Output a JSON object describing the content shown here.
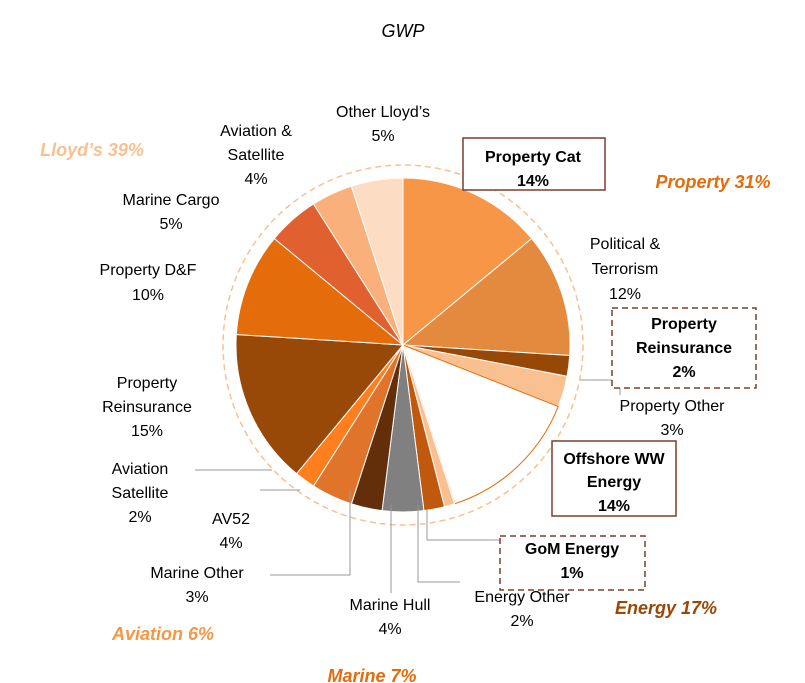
{
  "chart_data": {
    "type": "pie",
    "title": "GWP",
    "categories": [
      [
        "Property Cat"
      ],
      [
        "Political &",
        "Terrorism"
      ],
      [
        "Property",
        "Reinsurance"
      ],
      [
        "Property Other"
      ],
      [
        "Offshore WW",
        "Energy"
      ],
      [
        "GoM Energy"
      ],
      [
        "Energy Other"
      ],
      [
        "Marine Hull"
      ],
      [
        "Marine Other"
      ],
      [
        "AV52"
      ],
      [
        "Aviation",
        "Satellite"
      ],
      [
        "Property",
        "Reinsurance"
      ],
      [
        "Property D&F"
      ],
      [
        "Marine Cargo"
      ],
      [
        "Aviation &",
        "Satellite"
      ],
      [
        "Other Lloyd’s"
      ]
    ],
    "values": [
      14,
      12,
      2,
      3,
      14,
      1,
      2,
      4,
      3,
      4,
      2,
      15,
      10,
      5,
      4,
      5
    ],
    "value_labels": [
      "14%",
      "12%",
      "2%",
      "3%",
      "14%",
      "1%",
      "2%",
      "4%",
      "3%",
      "4%",
      "2%",
      "15%",
      "10%",
      "5%",
      "4%",
      "5%"
    ],
    "colors": [
      "#F79646",
      "#E38A3F",
      "#974706",
      "#FAC090",
      "#FFFFFF",
      "#FAC090",
      "#C0580D",
      "#808080",
      "#632E0A",
      "#E0742A",
      "#FF7F1F",
      "#984807",
      "#E46C0A",
      "#E06030",
      "#FAB07A",
      "#FDDCC4"
    ],
    "label_box": [
      "solid",
      null,
      "dashed",
      null,
      "solid",
      "dashed",
      null,
      null,
      null,
      null,
      null,
      null,
      null,
      null,
      null,
      null
    ],
    "groups": [
      {
        "label": "Lloyd’s 39%",
        "color": "#FAC090"
      },
      {
        "label": "Property 31%",
        "color": "#E46C0A"
      },
      {
        "label": "Energy 17%",
        "color": "#984807"
      },
      {
        "label": "Aviation 6%",
        "color": "#F79646"
      },
      {
        "label": "Marine 7%",
        "color": "#E46C0A"
      }
    ]
  }
}
